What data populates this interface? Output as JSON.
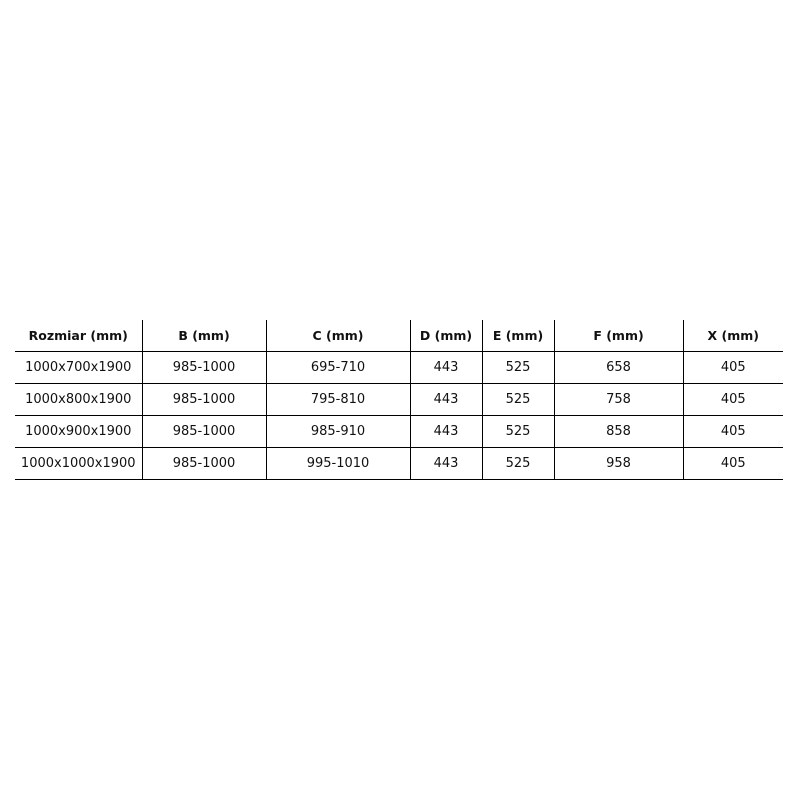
{
  "table": {
    "headers": [
      "Rozmiar (mm)",
      "B (mm)",
      "C (mm)",
      "D (mm)",
      "E (mm)",
      "F (mm)",
      "X (mm)"
    ],
    "rows": [
      [
        "1000x700x1900",
        "985-1000",
        "695-710",
        "443",
        "525",
        "658",
        "405"
      ],
      [
        "1000x800x1900",
        "985-1000",
        "795-810",
        "443",
        "525",
        "758",
        "405"
      ],
      [
        "1000x900x1900",
        "985-1000",
        "985-910",
        "443",
        "525",
        "858",
        "405"
      ],
      [
        "1000x1000x1900",
        "985-1000",
        "995-1010",
        "443",
        "525",
        "958",
        "405"
      ]
    ]
  }
}
